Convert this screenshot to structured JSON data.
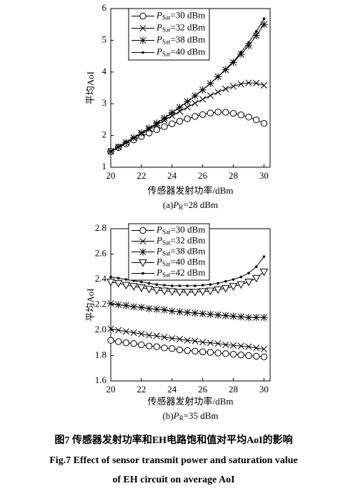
{
  "chart_data": [
    {
      "type": "line",
      "subtitle": "(a)PR=28 dBm",
      "xlabel": "传感器发射功率/dBm",
      "ylabel": "平均AoI",
      "x": [
        20,
        20.5,
        21,
        21.5,
        22,
        22.5,
        23,
        23.5,
        24,
        24.5,
        25,
        25.5,
        26,
        26.5,
        27,
        27.5,
        28,
        28.5,
        29,
        29.5,
        30
      ],
      "xlim": [
        20,
        30.4
      ],
      "ylim": [
        1,
        6
      ],
      "xticks": [
        20,
        22,
        24,
        26,
        28,
        30
      ],
      "yticks": [
        1,
        2,
        3,
        4,
        5,
        6
      ],
      "legend": "upper left",
      "series": [
        {
          "name": "PSat=30 dBm",
          "marker": "circle",
          "color": "#000000",
          "values": [
            1.5,
            1.62,
            1.74,
            1.86,
            1.97,
            2.08,
            2.18,
            2.28,
            2.37,
            2.45,
            2.53,
            2.6,
            2.66,
            2.71,
            2.74,
            2.73,
            2.7,
            2.65,
            2.58,
            2.49,
            2.38
          ]
        },
        {
          "name": "PSat=32 dBm",
          "marker": "x",
          "color": "#000000",
          "values": [
            1.5,
            1.64,
            1.78,
            1.92,
            2.06,
            2.2,
            2.34,
            2.48,
            2.62,
            2.76,
            2.89,
            3.02,
            3.14,
            3.26,
            3.37,
            3.47,
            3.55,
            3.62,
            3.66,
            3.65,
            3.58
          ]
        },
        {
          "name": "PSat=38 dBm",
          "marker": "asterisk",
          "color": "#000000",
          "values": [
            1.5,
            1.64,
            1.78,
            1.93,
            2.08,
            2.23,
            2.39,
            2.55,
            2.72,
            2.89,
            3.07,
            3.25,
            3.44,
            3.64,
            3.85,
            4.07,
            4.3,
            4.56,
            4.83,
            5.15,
            5.5
          ]
        },
        {
          "name": "PSat=40 dBm",
          "marker": "dot",
          "color": "#000000",
          "values": [
            1.5,
            1.64,
            1.78,
            1.93,
            2.08,
            2.23,
            2.39,
            2.55,
            2.72,
            2.89,
            3.07,
            3.25,
            3.44,
            3.64,
            3.86,
            4.09,
            4.33,
            4.62,
            4.93,
            5.28,
            5.68
          ]
        }
      ]
    },
    {
      "type": "line",
      "subtitle": "(b)PR=35 dBm",
      "xlabel": "传感器发射功率/dBm",
      "ylabel": "平均AoI",
      "x": [
        20,
        20.5,
        21,
        21.5,
        22,
        22.5,
        23,
        23.5,
        24,
        24.5,
        25,
        25.5,
        26,
        26.5,
        27,
        27.5,
        28,
        28.5,
        29,
        29.5,
        30
      ],
      "xlim": [
        20,
        30.4
      ],
      "ylim": [
        1.6,
        2.8
      ],
      "xticks": [
        20,
        22,
        24,
        26,
        28,
        30
      ],
      "yticks": [
        1.6,
        1.8,
        {
          "value": 2,
          "label": "2.0"
        },
        2.2,
        2.4,
        2.6,
        2.8
      ],
      "legend": "upper left",
      "series": [
        {
          "name": "PSat=30 dBm",
          "marker": "circle",
          "color": "#000000",
          "values": [
            1.92,
            1.91,
            1.9,
            1.895,
            1.885,
            1.875,
            1.87,
            1.86,
            1.855,
            1.845,
            1.84,
            1.835,
            1.83,
            1.825,
            1.82,
            1.815,
            1.81,
            1.805,
            1.8,
            1.795,
            1.79
          ]
        },
        {
          "name": "PSat=32 dBm",
          "marker": "x",
          "color": "#000000",
          "values": [
            2.01,
            2,
            1.99,
            1.98,
            1.97,
            1.96,
            1.955,
            1.945,
            1.935,
            1.93,
            1.92,
            1.915,
            1.905,
            1.9,
            1.895,
            1.885,
            1.88,
            1.875,
            1.87,
            1.86,
            1.85
          ]
        },
        {
          "name": "PSat=38 dBm",
          "marker": "asterisk",
          "color": "#000000",
          "values": [
            2.21,
            2.2,
            2.195,
            2.185,
            2.18,
            2.17,
            2.165,
            2.16,
            2.15,
            2.145,
            2.14,
            2.135,
            2.13,
            2.125,
            2.12,
            2.115,
            2.11,
            2.105,
            2.1,
            2.1,
            2.1
          ]
        },
        {
          "name": "PSat=40 dBm",
          "marker": "triangle",
          "color": "#000000",
          "values": [
            2.38,
            2.37,
            2.355,
            2.345,
            2.335,
            2.325,
            2.315,
            2.31,
            2.305,
            2.3,
            2.3,
            2.3,
            2.305,
            2.31,
            2.32,
            2.33,
            2.345,
            2.36,
            2.38,
            2.41,
            2.46
          ]
        },
        {
          "name": "PSat=42 dBm",
          "marker": "dot",
          "color": "#000000",
          "values": [
            2.42,
            2.41,
            2.4,
            2.39,
            2.38,
            2.37,
            2.36,
            2.355,
            2.35,
            2.35,
            2.35,
            2.35,
            2.355,
            2.36,
            2.37,
            2.385,
            2.4,
            2.42,
            2.45,
            2.5,
            2.58
          ]
        }
      ]
    }
  ],
  "caption": {
    "zh": "图7  传感器发射功率和EH电路饱和值对平均AoI的影响",
    "en": [
      "Fig.7  Effect of sensor transmit power and saturation value",
      "of EH circuit on average AoI"
    ]
  }
}
